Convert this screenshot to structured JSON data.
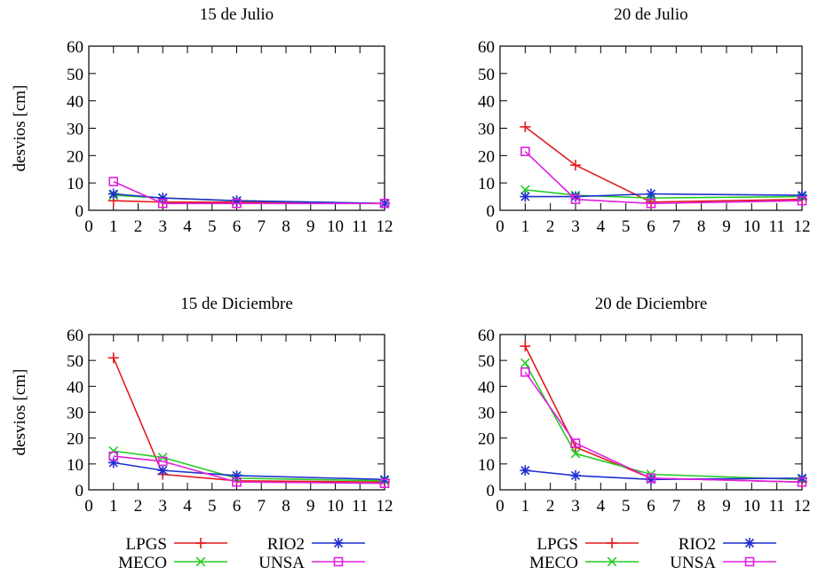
{
  "chart_data": [
    {
      "type": "line",
      "title": "15 de Julio",
      "ylabel": "desvios [cm]",
      "xlabel": "",
      "xlim": [
        0,
        12
      ],
      "ylim": [
        0,
        60
      ],
      "xticks": [
        0,
        1,
        2,
        3,
        4,
        5,
        6,
        7,
        8,
        9,
        10,
        11,
        12
      ],
      "yticks": [
        0,
        10,
        20,
        30,
        40,
        50,
        60
      ],
      "x": [
        1,
        3,
        6,
        12
      ],
      "series": [
        {
          "name": "LPGS",
          "values": [
            3.5,
            3,
            3,
            2.5
          ]
        },
        {
          "name": "MECO",
          "values": [
            5.5,
            4.5,
            3.5,
            2.5
          ]
        },
        {
          "name": "RIO2",
          "values": [
            6,
            4.5,
            3.5,
            2.5
          ]
        },
        {
          "name": "UNSA",
          "values": [
            10.5,
            2.5,
            2.5,
            2.5
          ]
        }
      ]
    },
    {
      "type": "line",
      "title": "20 de Julio",
      "ylabel": "",
      "xlabel": "",
      "xlim": [
        0,
        12
      ],
      "ylim": [
        0,
        60
      ],
      "xticks": [
        0,
        1,
        2,
        3,
        4,
        5,
        6,
        7,
        8,
        9,
        10,
        11,
        12
      ],
      "yticks": [
        0,
        10,
        20,
        30,
        40,
        50,
        60
      ],
      "x": [
        1,
        3,
        6,
        12
      ],
      "series": [
        {
          "name": "LPGS",
          "values": [
            30.5,
            16.5,
            3,
            4
          ]
        },
        {
          "name": "MECO",
          "values": [
            7.5,
            5.5,
            4.5,
            5
          ]
        },
        {
          "name": "RIO2",
          "values": [
            5,
            5,
            6,
            5.5
          ]
        },
        {
          "name": "UNSA",
          "values": [
            21.5,
            4,
            2.5,
            3.5
          ]
        }
      ]
    },
    {
      "type": "line",
      "title": "15 de Diciembre",
      "ylabel": "desvios [cm]",
      "xlabel": "",
      "xlim": [
        0,
        12
      ],
      "ylim": [
        0,
        60
      ],
      "xticks": [
        0,
        1,
        2,
        3,
        4,
        5,
        6,
        7,
        8,
        9,
        10,
        11,
        12
      ],
      "yticks": [
        0,
        10,
        20,
        30,
        40,
        50,
        60
      ],
      "x": [
        1,
        3,
        6,
        12
      ],
      "series": [
        {
          "name": "LPGS",
          "values": [
            51,
            6,
            3.5,
            3
          ]
        },
        {
          "name": "MECO",
          "values": [
            15,
            12.5,
            4.5,
            3.5
          ]
        },
        {
          "name": "RIO2",
          "values": [
            10.5,
            7.5,
            5.5,
            4
          ]
        },
        {
          "name": "UNSA",
          "values": [
            13,
            11,
            3,
            2.5
          ]
        }
      ]
    },
    {
      "type": "line",
      "title": "20 de Diciembre",
      "ylabel": "",
      "xlabel": "",
      "xlim": [
        0,
        12
      ],
      "ylim": [
        0,
        60
      ],
      "xticks": [
        0,
        1,
        2,
        3,
        4,
        5,
        6,
        7,
        8,
        9,
        10,
        11,
        12
      ],
      "yticks": [
        0,
        10,
        20,
        30,
        40,
        50,
        60
      ],
      "x": [
        1,
        3,
        6,
        12
      ],
      "series": [
        {
          "name": "LPGS",
          "values": [
            55.5,
            16.5,
            4.5,
            3
          ]
        },
        {
          "name": "MECO",
          "values": [
            49,
            14,
            6,
            4
          ]
        },
        {
          "name": "RIO2",
          "values": [
            7.5,
            5.5,
            4,
            4.5
          ]
        },
        {
          "name": "UNSA",
          "values": [
            45.5,
            18,
            4.5,
            3
          ]
        }
      ]
    }
  ],
  "legend": {
    "entries": [
      {
        "name": "LPGS",
        "color": "#e41a1c",
        "marker": "plus"
      },
      {
        "name": "RIO2",
        "color": "#1f2fd0",
        "marker": "star"
      },
      {
        "name": "MECO",
        "color": "#22cc22",
        "marker": "cross"
      },
      {
        "name": "UNSA",
        "color": "#e020e0",
        "marker": "square"
      }
    ]
  },
  "series_styles": {
    "LPGS": {
      "color": "#e41a1c",
      "marker": "plus"
    },
    "MECO": {
      "color": "#22cc22",
      "marker": "cross"
    },
    "RIO2": {
      "color": "#1f2fd0",
      "marker": "star"
    },
    "UNSA": {
      "color": "#e020e0",
      "marker": "square"
    }
  }
}
